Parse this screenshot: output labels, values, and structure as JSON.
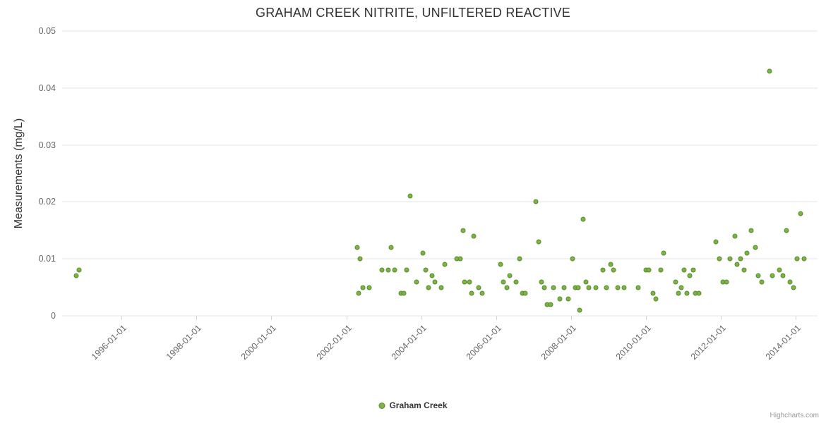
{
  "title": "GRAHAM CREEK NITRITE, UNFILTERED REACTIVE",
  "legend": {
    "label": "Graham Creek"
  },
  "credits": "Highcharts.com",
  "colors": {
    "point_fill": "#7cb342",
    "point_border": "#558b2f",
    "gridline": "#e6e6e6",
    "tick_label": "#666666",
    "title_text": "#333333"
  },
  "chart_data": {
    "type": "scatter",
    "title": "GRAHAM CREEK NITRITE, UNFILTERED REACTIVE",
    "xlabel": "",
    "ylabel": "Measurements (mg/L)",
    "ylim": [
      0,
      0.05
    ],
    "y_ticks": [
      0,
      0.01,
      0.02,
      0.03,
      0.04,
      0.05
    ],
    "y_tick_labels": [
      "0",
      "0.01",
      "0.02",
      "0.03",
      "0.04",
      "0.05"
    ],
    "x_ticks": [
      "1996-01-01",
      "1998-01-01",
      "2000-01-01",
      "2002-01-01",
      "2004-01-01",
      "2006-01-01",
      "2008-01-01",
      "2010-01-01",
      "2012-01-01",
      "2014-01-01"
    ],
    "x_range": [
      "1994-06-01",
      "2014-08-01"
    ],
    "grid": true,
    "legend_position": "bottom-center",
    "series": [
      {
        "name": "Graham Creek",
        "color": "#7cb342",
        "border_color": "#558b2f",
        "points": [
          [
            "1994-10-15",
            0.007
          ],
          [
            "1994-11-15",
            0.008
          ],
          [
            "2002-04-15",
            0.012
          ],
          [
            "2002-05-01",
            0.004
          ],
          [
            "2002-05-15",
            0.01
          ],
          [
            "2002-06-15",
            0.005
          ],
          [
            "2002-08-15",
            0.005
          ],
          [
            "2002-12-15",
            0.008
          ],
          [
            "2003-02-15",
            0.008
          ],
          [
            "2003-03-15",
            0.012
          ],
          [
            "2003-04-15",
            0.008
          ],
          [
            "2003-06-15",
            0.004
          ],
          [
            "2003-07-15",
            0.004
          ],
          [
            "2003-08-15",
            0.008
          ],
          [
            "2003-09-15",
            0.021
          ],
          [
            "2003-11-15",
            0.006
          ],
          [
            "2004-01-15",
            0.011
          ],
          [
            "2004-02-15",
            0.008
          ],
          [
            "2004-03-15",
            0.005
          ],
          [
            "2004-04-15",
            0.007
          ],
          [
            "2004-05-15",
            0.006
          ],
          [
            "2004-07-15",
            0.005
          ],
          [
            "2004-08-15",
            0.009
          ],
          [
            "2004-12-15",
            0.01
          ],
          [
            "2005-01-15",
            0.01
          ],
          [
            "2005-02-10",
            0.015
          ],
          [
            "2005-02-25",
            0.006
          ],
          [
            "2005-04-15",
            0.006
          ],
          [
            "2005-05-05",
            0.004
          ],
          [
            "2005-05-25",
            0.014
          ],
          [
            "2005-07-15",
            0.005
          ],
          [
            "2005-08-15",
            0.004
          ],
          [
            "2006-02-15",
            0.009
          ],
          [
            "2006-03-15",
            0.006
          ],
          [
            "2006-04-15",
            0.005
          ],
          [
            "2006-05-15",
            0.007
          ],
          [
            "2006-07-15",
            0.006
          ],
          [
            "2006-08-15",
            0.01
          ],
          [
            "2006-09-15",
            0.004
          ],
          [
            "2006-10-15",
            0.004
          ],
          [
            "2007-01-25",
            0.02
          ],
          [
            "2007-02-20",
            0.013
          ],
          [
            "2007-03-20",
            0.006
          ],
          [
            "2007-04-15",
            0.005
          ],
          [
            "2007-05-15",
            0.002
          ],
          [
            "2007-06-15",
            0.002
          ],
          [
            "2007-07-15",
            0.005
          ],
          [
            "2007-09-15",
            0.003
          ],
          [
            "2007-10-25",
            0.005
          ],
          [
            "2007-12-05",
            0.003
          ],
          [
            "2008-01-15",
            0.01
          ],
          [
            "2008-02-15",
            0.005
          ],
          [
            "2008-03-10",
            0.005
          ],
          [
            "2008-03-25",
            0.001
          ],
          [
            "2008-05-01",
            0.017
          ],
          [
            "2008-05-25",
            0.006
          ],
          [
            "2008-06-20",
            0.005
          ],
          [
            "2008-09-01",
            0.005
          ],
          [
            "2008-11-10",
            0.008
          ],
          [
            "2008-12-15",
            0.005
          ],
          [
            "2009-01-20",
            0.009
          ],
          [
            "2009-02-20",
            0.008
          ],
          [
            "2009-04-01",
            0.005
          ],
          [
            "2009-06-05",
            0.005
          ],
          [
            "2009-10-20",
            0.005
          ],
          [
            "2010-01-01",
            0.008
          ],
          [
            "2010-02-01",
            0.008
          ],
          [
            "2010-03-10",
            0.004
          ],
          [
            "2010-04-05",
            0.003
          ],
          [
            "2010-05-25",
            0.008
          ],
          [
            "2010-06-20",
            0.011
          ],
          [
            "2010-10-15",
            0.006
          ],
          [
            "2010-11-15",
            0.004
          ],
          [
            "2010-12-10",
            0.005
          ],
          [
            "2011-01-10",
            0.008
          ],
          [
            "2011-02-05",
            0.004
          ],
          [
            "2011-03-05",
            0.007
          ],
          [
            "2011-04-10",
            0.008
          ],
          [
            "2011-05-01",
            0.004
          ],
          [
            "2011-06-01",
            0.004
          ],
          [
            "2011-11-15",
            0.013
          ],
          [
            "2011-12-20",
            0.01
          ],
          [
            "2012-01-20",
            0.006
          ],
          [
            "2012-02-25",
            0.006
          ],
          [
            "2012-04-01",
            0.01
          ],
          [
            "2012-05-15",
            0.014
          ],
          [
            "2012-06-05",
            0.009
          ],
          [
            "2012-07-10",
            0.01
          ],
          [
            "2012-08-15",
            0.008
          ],
          [
            "2012-09-10",
            0.011
          ],
          [
            "2012-10-25",
            0.015
          ],
          [
            "2012-12-01",
            0.012
          ],
          [
            "2013-01-01",
            0.007
          ],
          [
            "2013-02-05",
            0.006
          ],
          [
            "2013-04-20",
            0.043
          ],
          [
            "2013-05-20",
            0.007
          ],
          [
            "2013-07-25",
            0.008
          ],
          [
            "2013-08-30",
            0.007
          ],
          [
            "2013-10-01",
            0.015
          ],
          [
            "2013-11-05",
            0.006
          ],
          [
            "2013-12-10",
            0.005
          ],
          [
            "2014-01-10",
            0.01
          ],
          [
            "2014-02-20",
            0.018
          ],
          [
            "2014-03-25",
            0.01
          ]
        ]
      }
    ]
  }
}
